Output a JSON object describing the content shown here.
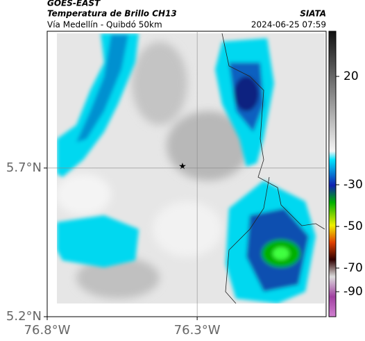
{
  "header": {
    "title": "GOES-EAST",
    "subtitle": "Temperatura de Brillo CH13",
    "source": "SIATA",
    "route": "Vía Medellín - Quibdó 50km",
    "datetime": "2024-06-25 07:59"
  },
  "map": {
    "lon_range": [
      -76.8,
      -75.87
    ],
    "lat_range": [
      5.2,
      6.16
    ],
    "lat_ticks": [
      {
        "value": 5.7,
        "label": "5.7°N"
      },
      {
        "value": 5.2,
        "label": "5.2°N"
      }
    ],
    "lon_ticks": [
      {
        "value": -76.8,
        "label": "76.8°W"
      },
      {
        "value": -76.3,
        "label": "76.3°W"
      }
    ]
  },
  "colorbar": {
    "ticks": [
      20,
      -30,
      -50,
      -70,
      -90
    ]
  }
}
